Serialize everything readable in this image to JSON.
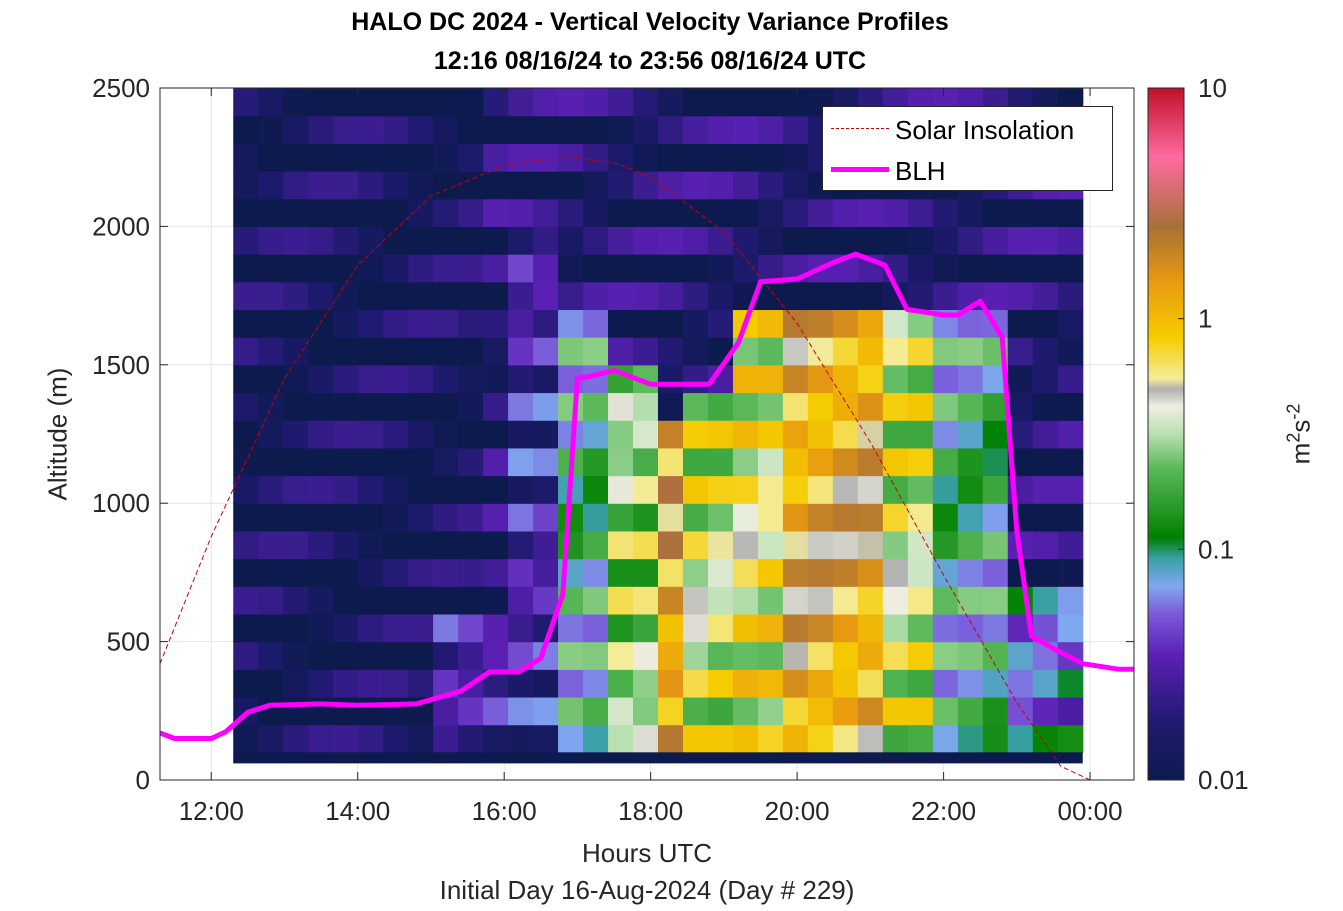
{
  "chart_data": {
    "type": "heatmap",
    "title": "HALO DC 2024 - Vertical Velocity Variance Profiles",
    "subtitle": "12:16 08/16/24 to 23:56 08/16/24  UTC",
    "xlabel": "Hours UTC",
    "ylabel": "Altitude (m)",
    "footer": "Initial Day 16-Aug-2024 (Day # 229)",
    "xlim": [
      11.3,
      24.6
    ],
    "ylim": [
      0,
      2500
    ],
    "x_ticks": [
      "12:00",
      "14:00",
      "16:00",
      "18:00",
      "20:00",
      "22:00",
      "00:00"
    ],
    "y_ticks": [
      "0",
      "500",
      "1000",
      "1500",
      "2000",
      "2500"
    ],
    "colorbar": {
      "label": "m²s⁻²",
      "label_base": "m",
      "label_sup1": "2",
      "label_mid": "s",
      "label_sup2": "-2",
      "scale": "log",
      "range": [
        0.01,
        10
      ],
      "ticks": [
        "0.01",
        "0.1",
        "1",
        "10"
      ]
    },
    "grid": true,
    "legend_position": "top-right",
    "series": [
      {
        "name": "Solar Insolation",
        "style": "dashed",
        "color": "#cc0000",
        "x": [
          11.3,
          12.0,
          13.0,
          14.0,
          15.0,
          16.0,
          16.5,
          17.0,
          17.5,
          18.0,
          19.0,
          20.0,
          21.0,
          22.0,
          23.0,
          23.6,
          24.0
        ],
        "y": [
          420,
          880,
          1450,
          1860,
          2110,
          2220,
          2240,
          2245,
          2230,
          2180,
          1980,
          1650,
          1220,
          740,
          280,
          50,
          0
        ]
      },
      {
        "name": "BLH",
        "style": "solid",
        "color": "#ff00ff",
        "x": [
          11.3,
          11.5,
          12.0,
          12.2,
          12.5,
          12.8,
          13.5,
          14.0,
          14.8,
          15.4,
          15.8,
          16.2,
          16.5,
          16.8,
          17.0,
          17.2,
          17.5,
          18.0,
          18.5,
          18.8,
          19.2,
          19.5,
          20.0,
          20.5,
          20.8,
          21.2,
          21.5,
          22.0,
          22.2,
          22.5,
          22.8,
          23.0,
          23.2,
          23.5,
          23.9,
          24.4,
          24.6
        ],
        "y": [
          170,
          150,
          150,
          175,
          245,
          270,
          275,
          270,
          275,
          320,
          390,
          390,
          440,
          670,
          1450,
          1460,
          1480,
          1430,
          1430,
          1430,
          1580,
          1800,
          1810,
          1870,
          1900,
          1860,
          1700,
          1680,
          1680,
          1730,
          1600,
          900,
          520,
          475,
          420,
          400,
          400
        ]
      }
    ],
    "heatmap_x_range": [
      12.3,
      23.9
    ],
    "heatmap_y_range": [
      100,
      2500
    ],
    "heatmap_columns": 34,
    "heatmap_rows": 24,
    "heatmap_blocks": [
      {
        "x": [
          12.3,
          15.6
        ],
        "y": [
          100,
          2500
        ],
        "v": 0.011
      },
      {
        "x": [
          15.0,
          16.0
        ],
        "y": [
          100,
          600
        ],
        "v": 0.03
      },
      {
        "x": [
          16.0,
          16.6
        ],
        "y": [
          100,
          2000
        ],
        "v": 0.03
      },
      {
        "x": [
          16.6,
          17.3
        ],
        "y": [
          100,
          1700
        ],
        "v": 0.12
      },
      {
        "x": [
          17.3,
          18.0
        ],
        "y": [
          100,
          1500
        ],
        "v": 0.3
      },
      {
        "x": [
          18.0,
          18.3
        ],
        "y": [
          100,
          1350
        ],
        "v": 1.2
      },
      {
        "x": [
          18.3,
          19.2
        ],
        "y": [
          100,
          1400
        ],
        "v": 0.4
      },
      {
        "x": [
          19.2,
          19.7
        ],
        "y": [
          100,
          1700
        ],
        "v": 0.5
      },
      {
        "x": [
          19.7,
          21.3
        ],
        "y": [
          100,
          1700
        ],
        "v": 1.0
      },
      {
        "x": [
          21.3,
          22.0
        ],
        "y": [
          100,
          1700
        ],
        "v": 0.4
      },
      {
        "x": [
          22.0,
          22.8
        ],
        "y": [
          100,
          1700
        ],
        "v": 0.12
      },
      {
        "x": [
          22.8,
          23.9
        ],
        "y": [
          100,
          700
        ],
        "v": 0.06
      }
    ]
  }
}
